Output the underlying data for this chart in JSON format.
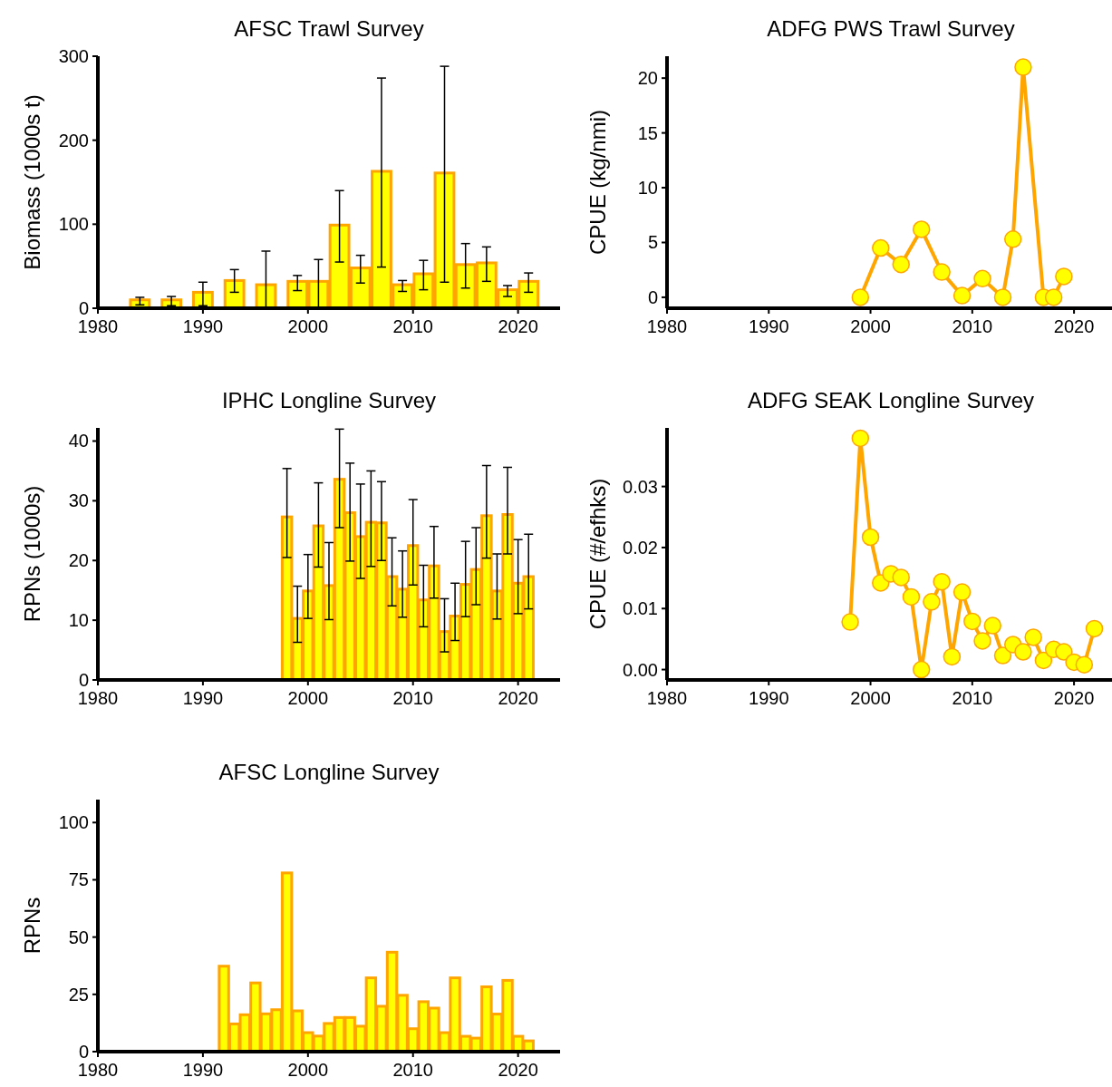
{
  "chart_data": [
    {
      "type": "bar",
      "title": "AFSC Trawl Survey",
      "ylabel": "Biomass (1000s t)",
      "xlim": [
        1980,
        2024
      ],
      "xticks": [
        1980,
        1990,
        2000,
        2010,
        2020
      ],
      "ylim": [
        0,
        300
      ],
      "yticks": [
        0,
        100,
        200,
        300
      ],
      "grid": false,
      "x": [
        1984,
        1987,
        1990,
        1993,
        1996,
        1999,
        2001,
        2003,
        2005,
        2007,
        2009,
        2011,
        2013,
        2015,
        2017,
        2019,
        2021
      ],
      "series": [
        {
          "color": "#ffff00",
          "values": [
            10,
            10,
            19,
            33,
            28,
            32,
            32,
            99,
            48,
            163,
            28,
            41,
            161,
            52,
            54,
            22,
            32
          ],
          "errors": [
            [
              4,
              13
            ],
            [
              3,
              14
            ],
            [
              3,
              31
            ],
            [
              19,
              46
            ],
            [
              0,
              68
            ],
            [
              21,
              39
            ],
            [
              1,
              58
            ],
            [
              55,
              140
            ],
            [
              30,
              63
            ],
            [
              49,
              274
            ],
            [
              20,
              33
            ],
            [
              22,
              57
            ],
            [
              31,
              288
            ],
            [
              24,
              77
            ],
            [
              32,
              73
            ],
            [
              14,
              27
            ],
            [
              19,
              42
            ]
          ]
        }
      ]
    },
    {
      "type": "line",
      "title": "ADFG PWS Trawl Survey",
      "ylabel": "CPUE (kg/nmi)",
      "xlim": [
        1980,
        2024
      ],
      "xticks": [
        1980,
        1990,
        2000,
        2010,
        2020
      ],
      "ylim": [
        -1,
        22
      ],
      "yticks": [
        0,
        5,
        10,
        15,
        20
      ],
      "grid": false,
      "marker": "circle",
      "line_style": "solid",
      "x": [
        1999,
        2001,
        2003,
        2005,
        2007,
        2009,
        2011,
        2013,
        2014,
        2015,
        2017,
        2018,
        2019
      ],
      "series": [
        {
          "color": "#ffa500",
          "values": [
            0.0,
            4.5,
            3.0,
            6.2,
            2.3,
            0.15,
            1.7,
            0.0,
            5.3,
            21.0,
            0.0,
            0.0,
            1.9
          ]
        }
      ]
    },
    {
      "type": "bar",
      "title": "IPHC Longline Survey",
      "ylabel": "RPNs (1000s)",
      "xlim": [
        1980,
        2024
      ],
      "xticks": [
        1980,
        1990,
        2000,
        2010,
        2020
      ],
      "ylim": [
        0,
        42.2
      ],
      "yticks": [
        0,
        10,
        20,
        30,
        40
      ],
      "grid": false,
      "x": [
        1998,
        1999,
        2000,
        2001,
        2002,
        2003,
        2004,
        2005,
        2006,
        2007,
        2008,
        2009,
        2010,
        2011,
        2012,
        2013,
        2014,
        2015,
        2016,
        2017,
        2018,
        2019,
        2020,
        2021
      ],
      "series": [
        {
          "color": "#ffff00",
          "values": [
            27.3,
            10.3,
            14.9,
            25.8,
            15.8,
            33.6,
            28.0,
            24.0,
            26.4,
            26.3,
            17.3,
            15.2,
            22.5,
            13.4,
            19.1,
            8.1,
            10.7,
            16.0,
            18.5,
            27.5,
            14.9,
            27.7,
            16.2,
            17.3
          ],
          "errors": [
            [
              20.5,
              35.4
            ],
            [
              6.3,
              15.7
            ],
            [
              10.3,
              21.0
            ],
            [
              18.9,
              33.0
            ],
            [
              10.1,
              23.0
            ],
            [
              25.5,
              42.0
            ],
            [
              19.9,
              36.3
            ],
            [
              17.0,
              32.8
            ],
            [
              19.0,
              35.0
            ],
            [
              20.0,
              33.2
            ],
            [
              12.4,
              23.8
            ],
            [
              10.5,
              21.6
            ],
            [
              15.9,
              30.2
            ],
            [
              8.9,
              19.2
            ],
            [
              13.7,
              25.7
            ],
            [
              4.7,
              13.6
            ],
            [
              6.6,
              16.2
            ],
            [
              10.6,
              23.2
            ],
            [
              12.6,
              25.5
            ],
            [
              20.4,
              35.9
            ],
            [
              10.2,
              21.1
            ],
            [
              21.1,
              35.6
            ],
            [
              11.1,
              23.5
            ],
            [
              11.9,
              24.4
            ]
          ]
        }
      ]
    },
    {
      "type": "line",
      "title": "ADFG SEAK Longline Survey",
      "ylabel": "CPUE (#/efhks)",
      "xlim": [
        1980,
        2024
      ],
      "xticks": [
        1980,
        1990,
        2000,
        2010,
        2020
      ],
      "ylim": [
        -0.0017,
        0.0396
      ],
      "yticks": [
        {
          "value": 0,
          "label": "0.00"
        },
        {
          "value": 0.01,
          "label": "0.01"
        },
        {
          "value": 0.02,
          "label": "0.02"
        },
        {
          "value": 0.03,
          "label": "0.03"
        }
      ],
      "grid": false,
      "marker": "circle",
      "line_style": "solid",
      "x": [
        1998,
        1999,
        2000,
        2001,
        2002,
        2003,
        2004,
        2005,
        2006,
        2007,
        2008,
        2009,
        2010,
        2011,
        2012,
        2013,
        2014,
        2015,
        2016,
        2017,
        2018,
        2019,
        2020,
        2021,
        2022
      ],
      "series": [
        {
          "color": "#ffa500",
          "values": [
            0.0078,
            0.0379,
            0.0217,
            0.0142,
            0.0157,
            0.0151,
            0.0119,
            0.0,
            0.0111,
            0.0144,
            0.0021,
            0.0127,
            0.0079,
            0.0047,
            0.0072,
            0.0023,
            0.0041,
            0.0029,
            0.0053,
            0.0015,
            0.0033,
            0.0029,
            0.0012,
            0.0008,
            0.0067
          ]
        }
      ]
    },
    {
      "type": "bar",
      "title": "AFSC Longline Survey",
      "ylabel": "RPNs",
      "xlim": [
        1980,
        2024
      ],
      "xticks": [
        1980,
        1990,
        2000,
        2010,
        2020
      ],
      "ylim": [
        0,
        110
      ],
      "yticks": [
        0,
        25,
        50,
        75,
        100
      ],
      "grid": false,
      "x": [
        1992,
        1993,
        1994,
        1995,
        1996,
        1997,
        1998,
        1999,
        2000,
        2001,
        2002,
        2003,
        2004,
        2005,
        2006,
        2007,
        2008,
        2009,
        2010,
        2011,
        2012,
        2013,
        2014,
        2015,
        2016,
        2017,
        2018,
        2019,
        2020,
        2021
      ],
      "series": [
        {
          "color": "#ffff00",
          "values": [
            37.3,
            12.1,
            16.1,
            30.0,
            16.5,
            18.3,
            78.0,
            17.8,
            8.3,
            6.8,
            12.3,
            14.9,
            14.9,
            11.1,
            32.2,
            19.8,
            43.4,
            24.6,
            10.0,
            21.8,
            19.0,
            8.3,
            32.2,
            6.7,
            5.9,
            28.3,
            16.4,
            31.1,
            6.7,
            4.7
          ]
        }
      ]
    }
  ]
}
